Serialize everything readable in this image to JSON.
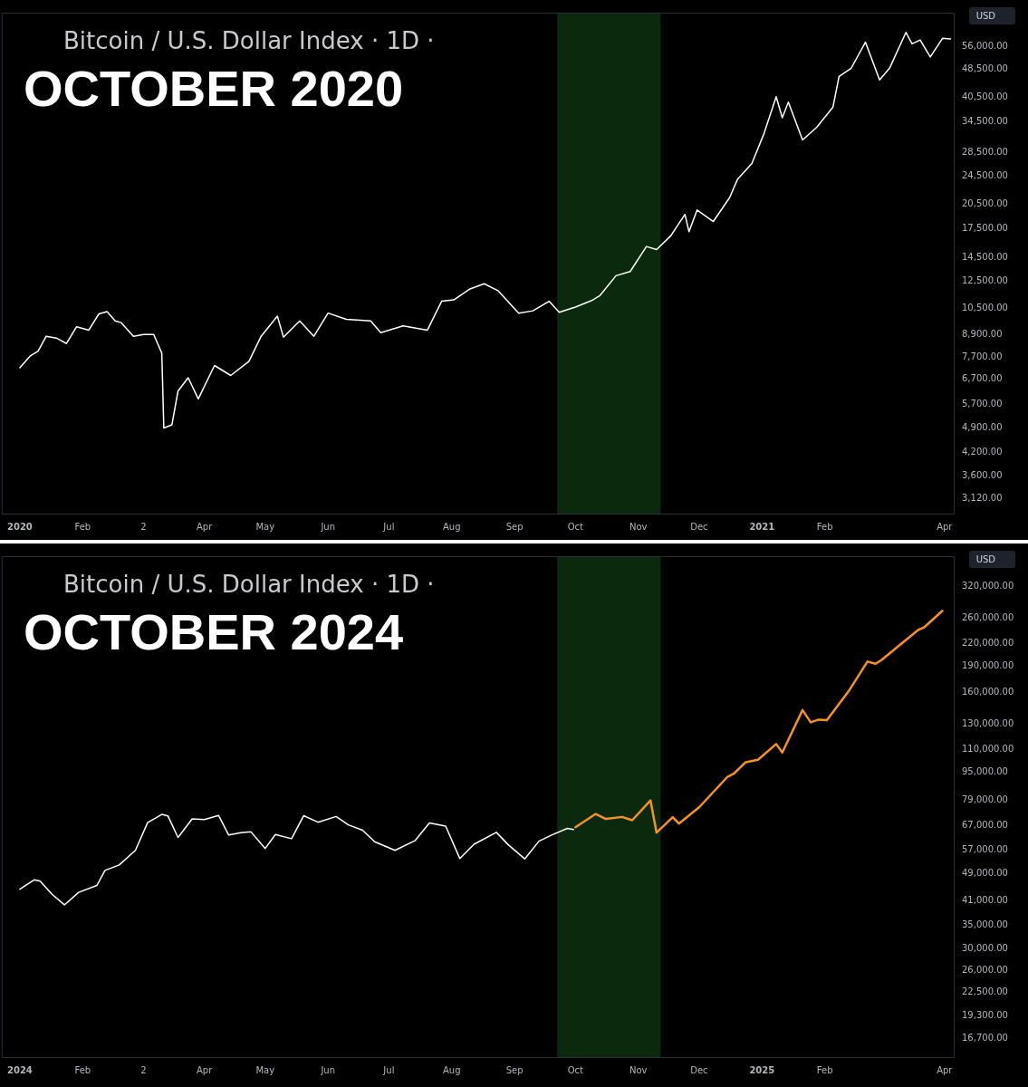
{
  "chart_data": [
    {
      "type": "line",
      "title": "OCTOBER 2020",
      "subtitle": "Bitcoin / U.S. Dollar Index · 1D ·",
      "ylabel": "USD",
      "log": "y",
      "grid": false,
      "legend": false,
      "marker": "none",
      "line_style": "solid",
      "xlim": [
        "2019-12-23",
        "2021-04-06"
      ],
      "xticks": [
        {
          "value": "2020-01-01",
          "label": "2020"
        },
        {
          "value": "2020-02-01",
          "label": "Feb"
        },
        {
          "value": "2020-03-02",
          "label": "2"
        },
        {
          "value": "2020-04-01",
          "label": "Apr"
        },
        {
          "value": "2020-05-01",
          "label": "May"
        },
        {
          "value": "2020-06-01",
          "label": "Jun"
        },
        {
          "value": "2020-07-01",
          "label": "Jul"
        },
        {
          "value": "2020-08-01",
          "label": "Aug"
        },
        {
          "value": "2020-09-01",
          "label": "Sep"
        },
        {
          "value": "2020-10-01",
          "label": "Oct"
        },
        {
          "value": "2020-11-01",
          "label": "Nov"
        },
        {
          "value": "2020-12-01",
          "label": "Dec"
        },
        {
          "value": "2021-01-01",
          "label": "2021"
        },
        {
          "value": "2021-02-01",
          "label": "Feb"
        },
        {
          "value": "2021-04-01",
          "label": "Apr"
        }
      ],
      "ylim": [
        2820,
        69400
      ],
      "yticks": [
        {
          "value": 3120,
          "label": "3,120.00"
        },
        {
          "value": 3600,
          "label": "3,600.00"
        },
        {
          "value": 4200,
          "label": "4,200.00"
        },
        {
          "value": 4900,
          "label": "4,900.00"
        },
        {
          "value": 5700,
          "label": "5,700.00"
        },
        {
          "value": 6700,
          "label": "6,700.00"
        },
        {
          "value": 7700,
          "label": "7,700.00"
        },
        {
          "value": 8900,
          "label": "8,900.00"
        },
        {
          "value": 10500,
          "label": "10,500.00"
        },
        {
          "value": 12500,
          "label": "12,500.00"
        },
        {
          "value": 14500,
          "label": "14,500.00"
        },
        {
          "value": 17500,
          "label": "17,500.00"
        },
        {
          "value": 20500,
          "label": "20,500.00"
        },
        {
          "value": 24500,
          "label": "24,500.00"
        },
        {
          "value": 28500,
          "label": "28,500.00"
        },
        {
          "value": 34500,
          "label": "34,500.00"
        },
        {
          "value": 40500,
          "label": "40,500.00"
        },
        {
          "value": 48500,
          "label": "48,500.00"
        },
        {
          "value": 56000,
          "label": "56,000.00"
        }
      ],
      "bands": [
        {
          "axis": "x",
          "from": "2020-09-22",
          "to": "2020-11-12",
          "color": "#0b2a0d"
        }
      ],
      "series": [
        {
          "color": "#ffffff",
          "x": [
            "2020-01-01",
            "2020-01-06",
            "2020-01-10",
            "2020-01-14",
            "2020-01-19",
            "2020-01-24",
            "2020-01-29",
            "2020-02-04",
            "2020-02-09",
            "2020-02-13",
            "2020-02-17",
            "2020-02-20",
            "2020-02-26",
            "2020-03-02",
            "2020-03-07",
            "2020-03-11",
            "2020-03-12",
            "2020-03-16",
            "2020-03-19",
            "2020-03-24",
            "2020-03-29",
            "2020-04-06",
            "2020-04-14",
            "2020-04-23",
            "2020-04-29",
            "2020-05-07",
            "2020-05-10",
            "2020-05-18",
            "2020-05-25",
            "2020-06-01",
            "2020-06-10",
            "2020-06-22",
            "2020-06-27",
            "2020-07-08",
            "2020-07-20",
            "2020-07-27",
            "2020-08-02",
            "2020-08-10",
            "2020-08-17",
            "2020-08-24",
            "2020-09-03",
            "2020-09-10",
            "2020-09-18",
            "2020-09-23",
            "2020-10-01",
            "2020-10-09",
            "2020-10-13",
            "2020-10-21",
            "2020-10-28",
            "2020-11-05",
            "2020-11-10",
            "2020-11-17",
            "2020-11-24",
            "2020-11-26",
            "2020-11-30",
            "2020-12-08",
            "2020-12-16",
            "2020-12-20",
            "2020-12-27",
            "2021-01-02",
            "2021-01-08",
            "2021-01-11",
            "2021-01-14",
            "2021-01-21",
            "2021-01-28",
            "2021-02-05",
            "2021-02-08",
            "2021-02-14",
            "2021-02-21",
            "2021-02-28",
            "2021-03-05",
            "2021-03-13",
            "2021-03-16",
            "2021-03-20",
            "2021-03-25",
            "2021-03-31",
            "2021-04-04"
          ],
          "values": [
            7200,
            7750,
            8000,
            8800,
            8700,
            8400,
            9350,
            9150,
            10150,
            10300,
            9700,
            9600,
            8800,
            8900,
            8900,
            7900,
            4900,
            5000,
            6200,
            6750,
            5900,
            7300,
            6850,
            7500,
            8800,
            10000,
            8750,
            9700,
            8800,
            10200,
            9800,
            9700,
            9000,
            9400,
            9150,
            11000,
            11100,
            11900,
            12300,
            11750,
            10200,
            10350,
            11000,
            10250,
            10600,
            11050,
            11400,
            12950,
            13300,
            15600,
            15300,
            16700,
            19150,
            17150,
            19700,
            18300,
            21300,
            24000,
            26500,
            32100,
            40600,
            35500,
            39200,
            30800,
            33400,
            38000,
            46200,
            48700,
            57500,
            45200,
            48800,
            61200,
            56900,
            58300,
            52300,
            58900,
            58700
          ]
        }
      ]
    },
    {
      "type": "line",
      "title": "OCTOBER 2024",
      "subtitle": "Bitcoin / U.S. Dollar Index · 1D ·",
      "ylabel": "USD",
      "log": "y",
      "grid": false,
      "legend": false,
      "marker": "none",
      "line_style": "solid",
      "xlim": [
        "2023-12-23",
        "2025-04-06"
      ],
      "xticks": [
        {
          "value": "2024-01-01",
          "label": "2024"
        },
        {
          "value": "2024-02-01",
          "label": "Feb"
        },
        {
          "value": "2024-03-02",
          "label": "2"
        },
        {
          "value": "2024-04-01",
          "label": "Apr"
        },
        {
          "value": "2024-05-01",
          "label": "May"
        },
        {
          "value": "2024-06-01",
          "label": "Jun"
        },
        {
          "value": "2024-07-01",
          "label": "Jul"
        },
        {
          "value": "2024-08-01",
          "label": "Aug"
        },
        {
          "value": "2024-09-01",
          "label": "Sep"
        },
        {
          "value": "2024-10-01",
          "label": "Oct"
        },
        {
          "value": "2024-11-01",
          "label": "Nov"
        },
        {
          "value": "2024-12-01",
          "label": "Dec"
        },
        {
          "value": "2025-01-01",
          "label": "2025"
        },
        {
          "value": "2025-02-01",
          "label": "Feb"
        },
        {
          "value": "2025-04-01",
          "label": "Apr"
        }
      ],
      "ylim": [
        14660,
        390000
      ],
      "yticks": [
        {
          "value": 16700,
          "label": "16,700.00"
        },
        {
          "value": 19300,
          "label": "19,300.00"
        },
        {
          "value": 22500,
          "label": "22,500.00"
        },
        {
          "value": 26000,
          "label": "26,000.00"
        },
        {
          "value": 30000,
          "label": "30,000.00"
        },
        {
          "value": 35000,
          "label": "35,000.00"
        },
        {
          "value": 41000,
          "label": "41,000.00"
        },
        {
          "value": 49000,
          "label": "49,000.00"
        },
        {
          "value": 57000,
          "label": "57,000.00"
        },
        {
          "value": 67000,
          "label": "67,000.00"
        },
        {
          "value": 79000,
          "label": "79,000.00"
        },
        {
          "value": 95000,
          "label": "95,000.00"
        },
        {
          "value": 110000,
          "label": "110,000.00"
        },
        {
          "value": 130000,
          "label": "130,000.00"
        },
        {
          "value": 160000,
          "label": "160,000.00"
        },
        {
          "value": 190000,
          "label": "190,000.00"
        },
        {
          "value": 220000,
          "label": "220,000.00"
        },
        {
          "value": 260000,
          "label": "260,000.00"
        },
        {
          "value": 320000,
          "label": "320,000.00"
        }
      ],
      "bands": [
        {
          "axis": "x",
          "from": "2024-09-22",
          "to": "2024-11-12",
          "color": "#0b2a0d"
        }
      ],
      "series": [
        {
          "color": "#ffffff",
          "x": [
            "2024-01-01",
            "2024-01-08",
            "2024-01-11",
            "2024-01-17",
            "2024-01-23",
            "2024-01-30",
            "2024-02-08",
            "2024-02-12",
            "2024-02-19",
            "2024-02-27",
            "2024-03-04",
            "2024-03-11",
            "2024-03-14",
            "2024-03-19",
            "2024-03-26",
            "2024-04-01",
            "2024-04-08",
            "2024-04-13",
            "2024-04-19",
            "2024-04-24",
            "2024-05-01",
            "2024-05-06",
            "2024-05-14",
            "2024-05-20",
            "2024-05-27",
            "2024-06-05",
            "2024-06-11",
            "2024-06-18",
            "2024-06-24",
            "2024-07-04",
            "2024-07-14",
            "2024-07-21",
            "2024-07-29",
            "2024-08-05",
            "2024-08-12",
            "2024-08-23",
            "2024-08-29",
            "2024-09-06",
            "2024-09-13",
            "2024-09-19",
            "2024-09-27",
            "2024-09-30"
          ],
          "values": [
            44200,
            47000,
            46600,
            42700,
            39900,
            43300,
            45300,
            50000,
            51800,
            57000,
            68300,
            72100,
            71400,
            62000,
            70000,
            69700,
            71600,
            63000,
            64000,
            64300,
            57700,
            63200,
            61500,
            71500,
            68500,
            71100,
            67300,
            65000,
            60300,
            57000,
            60800,
            68200,
            66800,
            54000,
            59300,
            64100,
            59000,
            53900,
            60500,
            62900,
            65800,
            65300
          ]
        },
        {
          "color": "#f7931a",
          "x": [
            "2024-10-01",
            "2024-10-11",
            "2024-10-16",
            "2024-10-24",
            "2024-10-29",
            "2024-11-07",
            "2024-11-10",
            "2024-11-18",
            "2024-11-21",
            "2024-12-01",
            "2024-12-15",
            "2024-12-18",
            "2024-12-24",
            "2024-12-30",
            "2025-01-08",
            "2025-01-11",
            "2025-01-21",
            "2025-01-25",
            "2025-01-29",
            "2025-02-02",
            "2025-02-13",
            "2025-02-22",
            "2025-02-26",
            "2025-03-01",
            "2025-03-19",
            "2025-03-22",
            "2025-03-31"
          ],
          "values": [
            66300,
            72300,
            70000,
            70900,
            69400,
            79000,
            64000,
            70800,
            67900,
            75500,
            92200,
            94000,
            101400,
            103000,
            114200,
            108000,
            142600,
            131600,
            134000,
            133500,
            162200,
            195800,
            193000,
            198000,
            240800,
            245000,
            273000
          ]
        }
      ]
    }
  ]
}
